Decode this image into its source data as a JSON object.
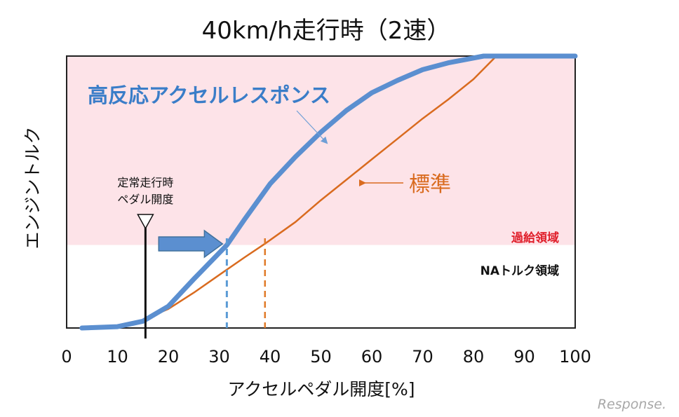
{
  "chart_data": {
    "type": "line",
    "title": "40km/h走行時（2速）",
    "xlabel": "アクセルペダル開度[%]",
    "ylabel": "エンジントルク",
    "xlim": [
      0,
      100
    ],
    "ylim": [
      0,
      100
    ],
    "x_ticks": [
      "0",
      "10",
      "20",
      "30",
      "40",
      "50",
      "60",
      "70",
      "80",
      "90",
      "100"
    ],
    "regions": {
      "boost": {
        "label": "過給領域",
        "y_from": 30.5,
        "y_to": 100,
        "color": "#fde3e8"
      },
      "na": {
        "label": "NAトルク領域",
        "y_from": 0,
        "y_to": 30.5,
        "color": "#ffffff"
      }
    },
    "series": [
      {
        "name": "高反応アクセルレスポンス",
        "color": "#5b8fd0",
        "x": [
          3,
          10,
          15,
          20,
          25,
          31.5,
          35,
          40,
          45,
          50,
          55,
          60,
          65,
          70,
          75,
          82,
          90,
          100
        ],
        "y": [
          0,
          0.5,
          2.5,
          8,
          18,
          30.5,
          40,
          53,
          63,
          72,
          80,
          86.5,
          91,
          95,
          97.5,
          100,
          100,
          100
        ]
      },
      {
        "name": "標準",
        "color": "#d96b1f",
        "x": [
          3,
          10,
          15,
          20,
          25,
          30,
          35,
          39,
          45,
          50,
          55,
          60,
          65,
          70,
          75,
          80,
          84.5,
          90,
          100
        ],
        "y": [
          0,
          0.5,
          3,
          7,
          13,
          19.5,
          26,
          31,
          39,
          47,
          54.5,
          62,
          69.5,
          77,
          84,
          91.5,
          100,
          100,
          100
        ]
      }
    ],
    "annotations": {
      "steady_label_line1": "定常走行時",
      "steady_label_line2": "ペダル開度",
      "steady_x": 15.5,
      "blue_shift_x": 31.5,
      "orange_x": 39,
      "shift_arrow_from_x": 17,
      "shift_arrow_to_x": 31.5
    }
  },
  "watermark": "Response."
}
